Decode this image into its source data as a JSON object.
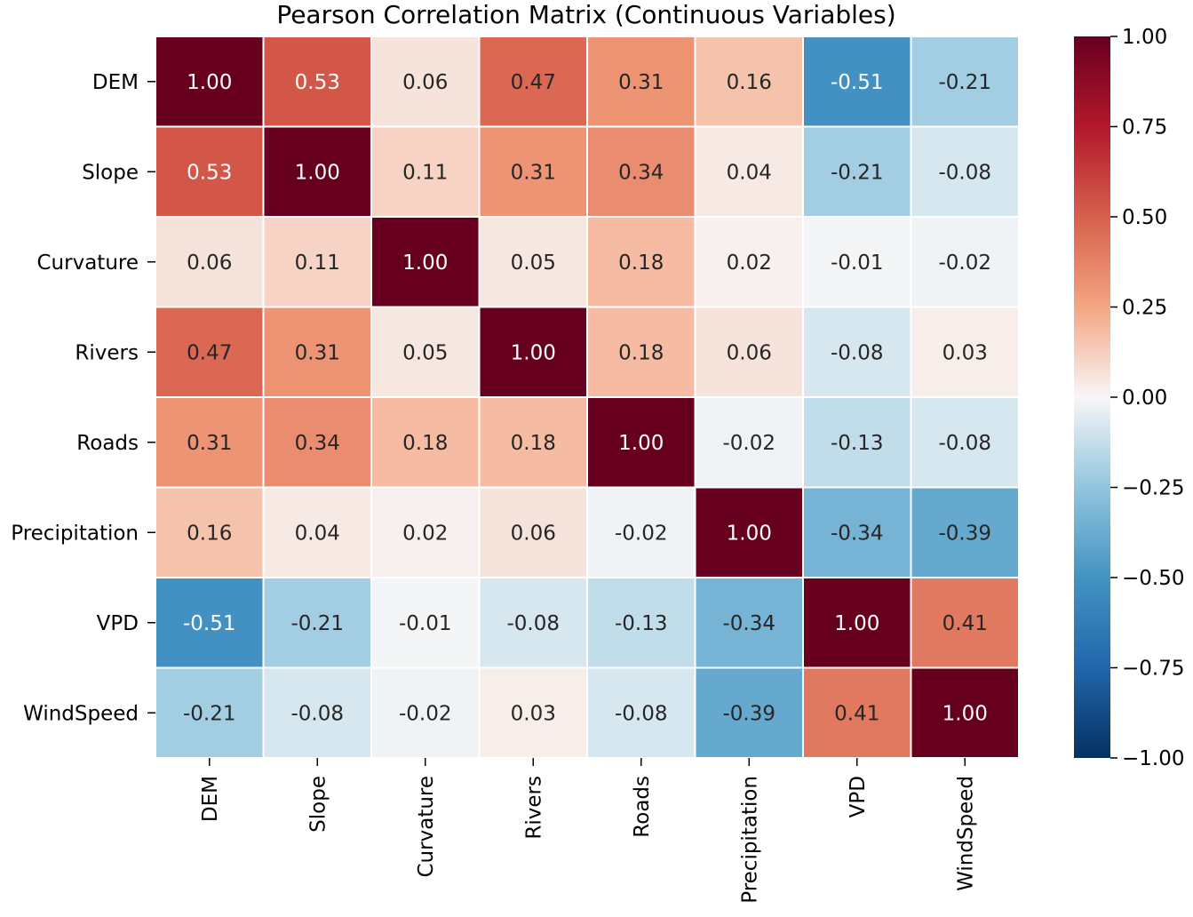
{
  "chart_data": {
    "type": "heatmap",
    "title": "Pearson Correlation Matrix (Continuous Variables)",
    "xlabel": "",
    "ylabel": "",
    "x_categories": [
      "DEM",
      "Slope",
      "Curvature",
      "Rivers",
      "Roads",
      "Precipitation",
      "VPD",
      "WindSpeed"
    ],
    "y_categories": [
      "DEM",
      "Slope",
      "Curvature",
      "Rivers",
      "Roads",
      "Precipitation",
      "VPD",
      "WindSpeed"
    ],
    "values": [
      [
        1.0,
        0.53,
        0.06,
        0.47,
        0.31,
        0.16,
        -0.51,
        -0.21
      ],
      [
        0.53,
        1.0,
        0.11,
        0.31,
        0.34,
        0.04,
        -0.21,
        -0.08
      ],
      [
        0.06,
        0.11,
        1.0,
        0.05,
        0.18,
        0.02,
        -0.01,
        -0.02
      ],
      [
        0.47,
        0.31,
        0.05,
        1.0,
        0.18,
        0.06,
        -0.08,
        0.03
      ],
      [
        0.31,
        0.34,
        0.18,
        0.18,
        1.0,
        -0.02,
        -0.13,
        -0.08
      ],
      [
        0.16,
        0.04,
        0.02,
        0.06,
        -0.02,
        1.0,
        -0.34,
        -0.39
      ],
      [
        -0.51,
        -0.21,
        -0.01,
        -0.08,
        -0.13,
        -0.34,
        1.0,
        0.41
      ],
      [
        -0.21,
        -0.08,
        -0.02,
        0.03,
        -0.08,
        -0.39,
        0.41,
        1.0
      ]
    ],
    "value_format": "2 decimals",
    "colormap": "RdBu_r",
    "vmin": -1.0,
    "vmax": 1.0,
    "colorbar_ticks": [
      1.0,
      0.75,
      0.5,
      0.25,
      0.0,
      -0.25,
      -0.5,
      -0.75,
      -1.0
    ],
    "colorbar_tick_labels": [
      "1.00",
      "0.75",
      "0.50",
      "0.25",
      "0.00",
      "−0.25",
      "−0.50",
      "−0.75",
      "−1.00"
    ],
    "colormap_stops": [
      [
        "#053061",
        -1.0
      ],
      [
        "#2166ac",
        -0.75
      ],
      [
        "#4393c3",
        -0.5
      ],
      [
        "#92c5de",
        -0.25
      ],
      [
        "#f7f7f7",
        0.0
      ],
      [
        "#f4a582",
        0.25
      ],
      [
        "#d6604d",
        0.5
      ],
      [
        "#b2182b",
        0.75
      ],
      [
        "#67001f",
        1.0
      ]
    ],
    "grid_line_color": "#ffffff"
  }
}
